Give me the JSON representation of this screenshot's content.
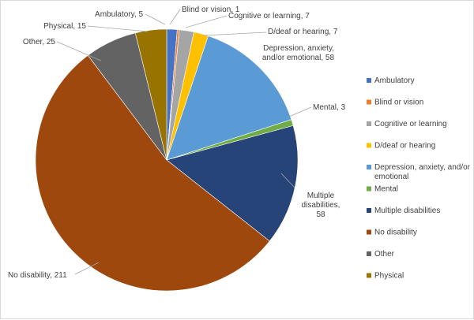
{
  "chart_data": {
    "type": "pie",
    "title": "",
    "start_angle_deg": 0,
    "direction": "clockwise",
    "legend_position": "right",
    "slices": [
      {
        "name": "Ambulatory",
        "value": 5,
        "color": "#4472c4",
        "data_label": "Ambulatory, 5"
      },
      {
        "name": "Blind or vision",
        "value": 1,
        "color": "#ed7d31",
        "data_label": "Blind or vision, 1"
      },
      {
        "name": "Cognitive or learning",
        "value": 7,
        "color": "#a5a5a5",
        "data_label": "Cognitive or learning, 7"
      },
      {
        "name": "D/deaf or hearing",
        "value": 7,
        "color": "#ffc000",
        "data_label": "D/deaf or hearing, 7"
      },
      {
        "name": "Depression, anxiety, and/or emotional",
        "value": 58,
        "color": "#5b9bd5",
        "data_label": "Depression, anxiety, and/or emotional, 58"
      },
      {
        "name": "Mental",
        "value": 3,
        "color": "#70ad47",
        "data_label": "Mental, 3"
      },
      {
        "name": "Multiple disabilities",
        "value": 58,
        "color": "#264478",
        "data_label": "Multiple disabilities, 58"
      },
      {
        "name": "No disability",
        "value": 211,
        "color": "#9e480e",
        "data_label": "No disability, 211"
      },
      {
        "name": "Other",
        "value": 25,
        "color": "#636363",
        "data_label": "Other, 25"
      },
      {
        "name": "Physical",
        "value": 15,
        "color": "#997300",
        "data_label": "Physical, 15"
      }
    ],
    "legend": [
      {
        "label": "Ambulatory",
        "color": "#4472c4"
      },
      {
        "label": "Blind or vision",
        "color": "#ed7d31"
      },
      {
        "label": "Cognitive or learning",
        "color": "#a5a5a5"
      },
      {
        "label": "D/deaf or hearing",
        "color": "#ffc000"
      },
      {
        "label": "Depression, anxiety, and/or emotional",
        "color": "#5b9bd5"
      },
      {
        "label": "Mental",
        "color": "#70ad47"
      },
      {
        "label": "Multiple disabilities",
        "color": "#264478"
      },
      {
        "label": "No disability",
        "color": "#9e480e"
      },
      {
        "label": "Other",
        "color": "#636363"
      },
      {
        "label": "Physical",
        "color": "#997300"
      }
    ]
  }
}
